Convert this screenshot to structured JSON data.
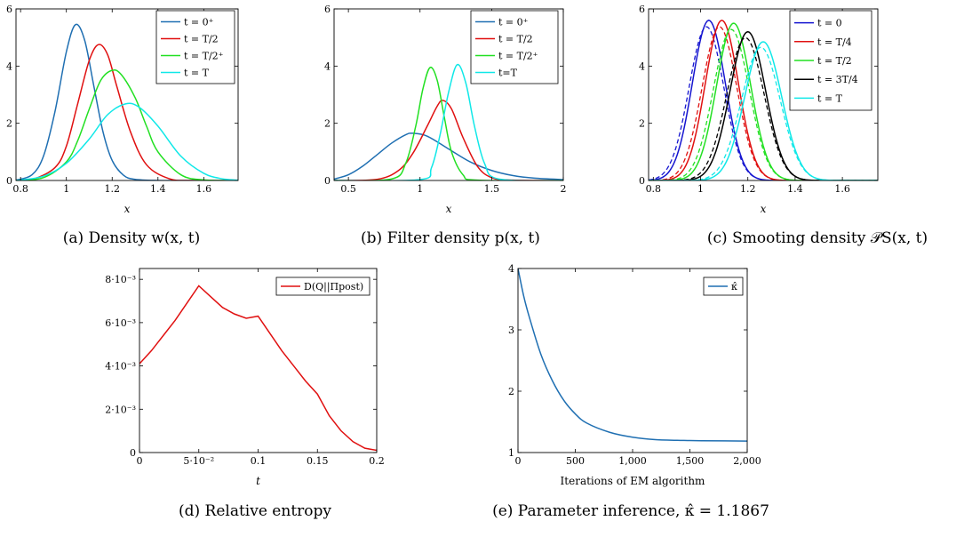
{
  "chart_data": [
    {
      "id": "a",
      "type": "line",
      "caption": "(a) Density w(x, t)",
      "xlabel": "x",
      "ylabel": "",
      "xlim": [
        0.78,
        1.75
      ],
      "ylim": [
        0,
        6
      ],
      "xticks": [
        0.8,
        1,
        1.2,
        1.4,
        1.6
      ],
      "xtick_labels": [
        "0.8",
        "1",
        "1.2",
        "1.4",
        "1.6"
      ],
      "yticks": [
        0,
        2,
        4,
        6
      ],
      "ytick_labels": [
        "0",
        "2",
        "4",
        "6"
      ],
      "legend_position": "top-right",
      "series": [
        {
          "name": "t = 0⁺",
          "color": "#1f6fb2",
          "x": [
            0.78,
            0.85,
            0.9,
            0.95,
            1.0,
            1.04,
            1.08,
            1.12,
            1.16,
            1.2,
            1.25,
            1.3,
            1.4,
            1.5,
            1.75
          ],
          "y": [
            0.01,
            0.2,
            0.85,
            2.4,
            4.5,
            5.45,
            4.9,
            3.3,
            1.7,
            0.7,
            0.18,
            0.04,
            0.0,
            0.0,
            0.0
          ]
        },
        {
          "name": "t = T/2",
          "color": "#e01010",
          "x": [
            0.78,
            0.85,
            0.95,
            1.0,
            1.05,
            1.1,
            1.14,
            1.18,
            1.22,
            1.28,
            1.35,
            1.45,
            1.55,
            1.75
          ],
          "y": [
            0.0,
            0.03,
            0.45,
            1.2,
            2.7,
            4.2,
            4.75,
            4.4,
            3.3,
            1.7,
            0.55,
            0.06,
            0.0,
            0.0
          ]
        },
        {
          "name": "t = T/2⁺",
          "color": "#22e022",
          "x": [
            0.78,
            0.9,
            1.0,
            1.05,
            1.1,
            1.15,
            1.2,
            1.24,
            1.3,
            1.35,
            1.4,
            1.5,
            1.6,
            1.75
          ],
          "y": [
            0.0,
            0.1,
            0.65,
            1.4,
            2.5,
            3.5,
            3.85,
            3.7,
            2.9,
            1.9,
            1.0,
            0.2,
            0.02,
            0.0
          ]
        },
        {
          "name": "t = T",
          "color": "#10e8e8",
          "x": [
            0.78,
            0.9,
            1.0,
            1.1,
            1.18,
            1.26,
            1.32,
            1.4,
            1.5,
            1.6,
            1.68,
            1.75
          ],
          "y": [
            0.0,
            0.15,
            0.6,
            1.45,
            2.3,
            2.68,
            2.55,
            1.9,
            0.85,
            0.25,
            0.06,
            0.01
          ]
        }
      ]
    },
    {
      "id": "b",
      "type": "line",
      "caption": "(b) Filter density p(x, t)",
      "xlabel": "x",
      "ylabel": "",
      "xlim": [
        0.4,
        2.0
      ],
      "ylim": [
        0,
        6
      ],
      "xticks": [
        0.5,
        1,
        1.5,
        2
      ],
      "xtick_labels": [
        "0.5",
        "1",
        "1.5",
        "2"
      ],
      "yticks": [
        0,
        2,
        4,
        6
      ],
      "ytick_labels": [
        "0",
        "2",
        "4",
        "6"
      ],
      "legend_position": "top-right",
      "series": [
        {
          "name": "t = 0⁺",
          "color": "#1f6fb2",
          "x": [
            0.4,
            0.5,
            0.6,
            0.7,
            0.8,
            0.9,
            0.95,
            1.05,
            1.2,
            1.35,
            1.5,
            1.65,
            1.8,
            2.0
          ],
          "y": [
            0.05,
            0.2,
            0.5,
            0.9,
            1.3,
            1.6,
            1.65,
            1.55,
            1.1,
            0.65,
            0.35,
            0.17,
            0.08,
            0.03
          ]
        },
        {
          "name": "t = T/2",
          "color": "#e01010",
          "x": [
            0.4,
            0.7,
            0.85,
            0.95,
            1.05,
            1.12,
            1.16,
            1.22,
            1.3,
            1.4,
            1.5,
            1.65,
            2.0
          ],
          "y": [
            0.0,
            0.04,
            0.35,
            0.95,
            1.9,
            2.6,
            2.8,
            2.5,
            1.5,
            0.5,
            0.1,
            0.01,
            0.0
          ]
        },
        {
          "name": "t = T/2⁺",
          "color": "#22e022",
          "x": [
            0.4,
            0.8,
            0.9,
            0.97,
            1.02,
            1.07,
            1.12,
            1.17,
            1.22,
            1.3,
            1.4,
            2.0
          ],
          "y": [
            0.0,
            0.05,
            0.6,
            1.9,
            3.2,
            3.95,
            3.5,
            2.2,
            1.0,
            0.2,
            0.01,
            0.0
          ]
        },
        {
          "name": "t=T",
          "color": "#10e8e8",
          "x": [
            0.4,
            1.0,
            1.08,
            1.14,
            1.2,
            1.26,
            1.32,
            1.38,
            1.45,
            1.55,
            2.0
          ],
          "y": [
            0.0,
            0.03,
            0.45,
            1.6,
            3.1,
            4.05,
            3.4,
            1.9,
            0.6,
            0.05,
            0.0
          ]
        }
      ]
    },
    {
      "id": "c",
      "type": "line",
      "caption": "(c) Smooting density 𝒫S(x, t)",
      "xlabel": "x",
      "ylabel": "",
      "xlim": [
        0.78,
        1.75
      ],
      "ylim": [
        0,
        6
      ],
      "xticks": [
        0.8,
        1,
        1.2,
        1.4,
        1.6
      ],
      "xtick_labels": [
        "0.8",
        "1",
        "1.2",
        "1.4",
        "1.6"
      ],
      "yticks": [
        0,
        2,
        4,
        6
      ],
      "ytick_labels": [
        "0",
        "2",
        "4",
        "6"
      ],
      "legend_position": "top-right",
      "series": [
        {
          "name": "t = 0",
          "color": "#1515d0",
          "center": 1.035,
          "peak": 5.6,
          "width": 0.07
        },
        {
          "name": "t = T/4",
          "color": "#e01010",
          "center": 1.09,
          "peak": 5.6,
          "width": 0.07
        },
        {
          "name": "t = T/2",
          "color": "#22e022",
          "center": 1.14,
          "peak": 5.5,
          "width": 0.072
        },
        {
          "name": "t = 3T/4",
          "color": "#000000",
          "center": 1.2,
          "peak": 5.2,
          "width": 0.075
        },
        {
          "name": "t = T",
          "color": "#10e8e8",
          "center": 1.265,
          "peak": 4.85,
          "width": 0.078
        }
      ]
    },
    {
      "id": "d",
      "type": "line",
      "caption": "(d) Relative entropy",
      "xlabel": "t",
      "ylabel": "",
      "xlim": [
        0,
        0.2
      ],
      "ylim": [
        0,
        0.0085
      ],
      "xticks": [
        0,
        0.05,
        0.1,
        0.15,
        0.2
      ],
      "xtick_labels": [
        "0",
        "5·10⁻²",
        "0.1",
        "0.15",
        "0.2"
      ],
      "yticks": [
        0,
        0.002,
        0.004,
        0.006,
        0.008
      ],
      "ytick_labels": [
        "0",
        "2·10⁻³",
        "4·10⁻³",
        "6·10⁻³",
        "8·10⁻³"
      ],
      "legend_position": "top-right",
      "series": [
        {
          "name": "D(Q||Πpost)",
          "color": "#e01010",
          "x": [
            0,
            0.01,
            0.02,
            0.03,
            0.04,
            0.05,
            0.06,
            0.07,
            0.08,
            0.09,
            0.1,
            0.11,
            0.12,
            0.13,
            0.14,
            0.15,
            0.16,
            0.17,
            0.18,
            0.19,
            0.2
          ],
          "y": [
            0.0041,
            0.0047,
            0.0054,
            0.0061,
            0.0069,
            0.0077,
            0.0072,
            0.0067,
            0.0064,
            0.0062,
            0.0063,
            0.0055,
            0.0047,
            0.004,
            0.0033,
            0.0027,
            0.0017,
            0.001,
            0.0005,
            0.0002,
            0.0001
          ]
        }
      ]
    },
    {
      "id": "e",
      "type": "line",
      "caption": "(e) Parameter inference, κ̂ = 1.1867",
      "xlabel": "Iterations of EM algorithm",
      "ylabel": "",
      "xlim": [
        0,
        2000
      ],
      "ylim": [
        1,
        4
      ],
      "xticks": [
        0,
        500,
        1000,
        1500,
        2000
      ],
      "xtick_labels": [
        "0",
        "500",
        "1,000",
        "1,500",
        "2,000"
      ],
      "yticks": [
        1,
        2,
        3,
        4
      ],
      "ytick_labels": [
        "1",
        "2",
        "3",
        "4"
      ],
      "legend_position": "top-right",
      "series": [
        {
          "name": "κ̂",
          "color": "#1f6fb2",
          "x": [
            0,
            50,
            100,
            200,
            300,
            400,
            500,
            600,
            800,
            1000,
            1200,
            1500,
            1800,
            2000
          ],
          "y": [
            4.0,
            3.55,
            3.2,
            2.6,
            2.17,
            1.85,
            1.63,
            1.48,
            1.33,
            1.25,
            1.21,
            1.195,
            1.19,
            1.187
          ]
        }
      ]
    }
  ]
}
